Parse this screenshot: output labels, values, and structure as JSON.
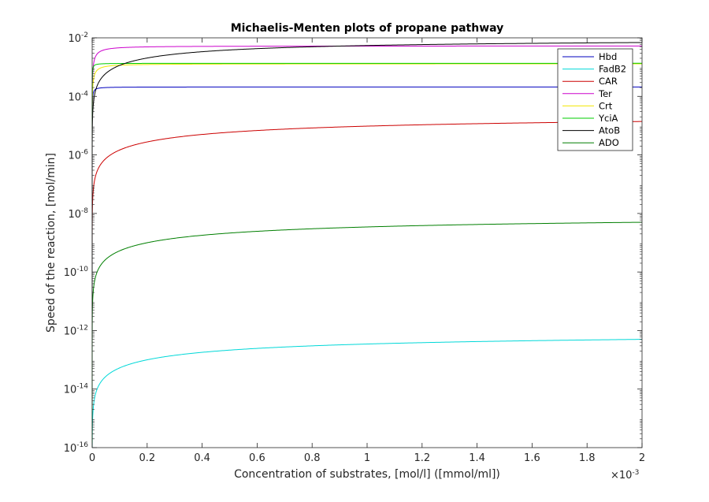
{
  "chart_data": {
    "type": "line",
    "title": "Michaelis-Menten plots of propane pathway",
    "xlabel": "Concentration of substrates, [mol/l] ([mmol/ml])",
    "ylabel": "Speed of the reaction, [mol/min]",
    "x_multiplier_label": "×10",
    "x_multiplier_exponent": "-3",
    "xscale": "linear",
    "yscale": "log",
    "xlim": [
      0,
      0.002
    ],
    "ylim": [
      1e-16,
      0.01
    ],
    "x_ticks": [
      0,
      0.0002,
      0.0004,
      0.0006,
      0.0008,
      0.001,
      0.0012,
      0.0014,
      0.0016,
      0.0018,
      0.002
    ],
    "x_tick_labels": [
      "0",
      "0.2",
      "0.4",
      "0.6",
      "0.8",
      "1",
      "1.2",
      "1.4",
      "1.6",
      "1.8",
      "2"
    ],
    "y_ticks": [
      {
        "value": 1e-16,
        "base": "10",
        "exp": "-16"
      },
      {
        "value": 1e-14,
        "base": "10",
        "exp": "-14"
      },
      {
        "value": 1e-12,
        "base": "10",
        "exp": "-12"
      },
      {
        "value": 1e-10,
        "base": "10",
        "exp": "-10"
      },
      {
        "value": 1e-08,
        "base": "10",
        "exp": "-8"
      },
      {
        "value": 1e-06,
        "base": "10",
        "exp": "-6"
      },
      {
        "value": 0.0001,
        "base": "10",
        "exp": "-4"
      },
      {
        "value": 0.01,
        "base": "10",
        "exp": "-2"
      }
    ],
    "grid": false,
    "legend_position": "top-right",
    "series": [
      {
        "name": "Hbd",
        "color": "#0000bf",
        "vmax": 0.00021,
        "km": 2.5e-06
      },
      {
        "name": "FadB2",
        "color": "#00d8d8",
        "vmax": 9e-13,
        "km": 0.0016
      },
      {
        "name": "CAR",
        "color": "#cc0000",
        "vmax": 2.5e-05,
        "km": 0.0016
      },
      {
        "name": "Ter",
        "color": "#cc00cc",
        "vmax": 0.0053,
        "km": 1.6e-05
      },
      {
        "name": "Crt",
        "color": "#f2e600",
        "vmax": 0.0013,
        "km": 1.2e-05
      },
      {
        "name": "YciA",
        "color": "#00cc00",
        "vmax": 0.00135,
        "km": 1.5e-06
      },
      {
        "name": "AtoB",
        "color": "#000000",
        "vmax": 0.0094,
        "km": 0.00072
      },
      {
        "name": "ADO",
        "color": "#007f00",
        "vmax": 9e-09,
        "km": 0.0016
      }
    ]
  }
}
